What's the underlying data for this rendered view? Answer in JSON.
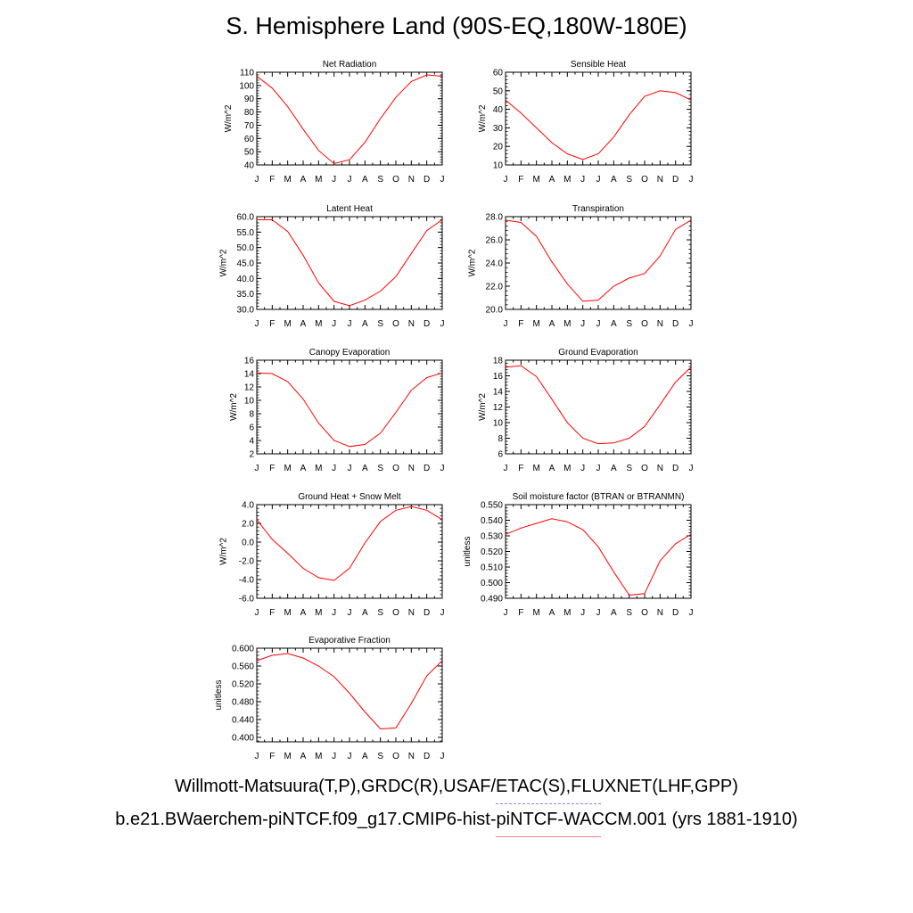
{
  "title": "S. Hemisphere Land (90S-EQ,180W-180E)",
  "footer": {
    "obs_sources": "Willmott-Matsuura(T,P),GRDC(R),USAF/ETAC(S),FLUXNET(LHF,GPP)",
    "model_case": "b.e21.BWaerchem-piNTCF.f09_g17.CMIP6-hist-piNTCF-WACCM.001 (yrs 1881-1910)"
  },
  "colors": {
    "series": "#ff0000",
    "obs_legend": "#8080ff",
    "model_legend": "#ff8080",
    "axes": "#000000"
  },
  "chart_data": [
    {
      "type": "line",
      "title": "Net Radiation",
      "ylabel": "W/m^2",
      "categories": [
        "J",
        "F",
        "M",
        "A",
        "M",
        "J",
        "J",
        "A",
        "S",
        "O",
        "N",
        "D",
        "J"
      ],
      "ylim": [
        40,
        110
      ],
      "yticks": [
        40,
        50,
        60,
        70,
        80,
        90,
        100,
        110
      ],
      "ytick_labels": [
        "40",
        "50",
        "60",
        "70",
        "80",
        "90",
        "100",
        "110"
      ],
      "values": [
        107,
        98,
        84,
        67,
        51,
        41,
        44,
        57,
        75,
        91,
        103,
        108,
        107
      ]
    },
    {
      "type": "line",
      "title": "Sensible Heat",
      "ylabel": "W/m^2",
      "categories": [
        "J",
        "F",
        "M",
        "A",
        "M",
        "J",
        "J",
        "A",
        "S",
        "O",
        "N",
        "D",
        "J"
      ],
      "ylim": [
        10,
        60
      ],
      "yticks": [
        10,
        20,
        30,
        40,
        50,
        60
      ],
      "ytick_labels": [
        "10",
        "20",
        "30",
        "40",
        "50",
        "60"
      ],
      "values": [
        45,
        38,
        30,
        22,
        16,
        13,
        16,
        25,
        37,
        47,
        50,
        49,
        45
      ]
    },
    {
      "type": "line",
      "title": "Latent Heat",
      "ylabel": "W/m^2",
      "categories": [
        "J",
        "F",
        "M",
        "A",
        "M",
        "J",
        "J",
        "A",
        "S",
        "O",
        "N",
        "D",
        "J"
      ],
      "ylim": [
        30,
        60
      ],
      "yticks": [
        30,
        35,
        40,
        45,
        50,
        55,
        60
      ],
      "ytick_labels": [
        "30.0",
        "35.0",
        "40.0",
        "45.0",
        "50.0",
        "55.0",
        "60.0"
      ],
      "values": [
        59,
        59,
        55.2,
        47.5,
        38.6,
        32.6,
        31.2,
        33,
        35.9,
        40.6,
        48.1,
        55.5,
        59
      ]
    },
    {
      "type": "line",
      "title": "Transpiration",
      "ylabel": "W/m^2",
      "categories": [
        "J",
        "F",
        "M",
        "A",
        "M",
        "J",
        "J",
        "A",
        "S",
        "O",
        "N",
        "D",
        "J"
      ],
      "ylim": [
        20,
        28
      ],
      "yticks": [
        20,
        22,
        24,
        26,
        28
      ],
      "ytick_labels": [
        "20.0",
        "22.0",
        "24.0",
        "26.0",
        "28.0"
      ],
      "values": [
        27.7,
        27.5,
        26.3,
        24.1,
        22.2,
        20.7,
        20.8,
        22,
        22.7,
        23.1,
        24.6,
        26.9,
        27.7
      ]
    },
    {
      "type": "line",
      "title": "Canopy Evaporation",
      "ylabel": "W/m^2",
      "categories": [
        "J",
        "F",
        "M",
        "A",
        "M",
        "J",
        "J",
        "A",
        "S",
        "O",
        "N",
        "D",
        "J"
      ],
      "ylim": [
        2,
        16
      ],
      "yticks": [
        2,
        4,
        6,
        8,
        10,
        12,
        14,
        16
      ],
      "ytick_labels": [
        "2",
        "4",
        "6",
        "8",
        "10",
        "12",
        "14",
        "16"
      ],
      "values": [
        14.1,
        14,
        12.8,
        10.2,
        6.6,
        4,
        3.1,
        3.4,
        5.1,
        8.2,
        11.5,
        13.4,
        14.1
      ]
    },
    {
      "type": "line",
      "title": "Ground Evaporation",
      "ylabel": "W/m^2",
      "categories": [
        "J",
        "F",
        "M",
        "A",
        "M",
        "J",
        "J",
        "A",
        "S",
        "O",
        "N",
        "D",
        "J"
      ],
      "ylim": [
        6,
        18
      ],
      "yticks": [
        6,
        8,
        10,
        12,
        14,
        16,
        18
      ],
      "ytick_labels": [
        "6",
        "8",
        "10",
        "12",
        "14",
        "16",
        "18"
      ],
      "values": [
        17.1,
        17.3,
        15.9,
        13,
        10,
        8,
        7.3,
        7.4,
        8,
        9.5,
        12.3,
        15.2,
        17.1
      ]
    },
    {
      "type": "line",
      "title": "Ground Heat + Snow Melt",
      "ylabel": "W/m^2",
      "categories": [
        "J",
        "F",
        "M",
        "A",
        "M",
        "J",
        "J",
        "A",
        "S",
        "O",
        "N",
        "D",
        "J"
      ],
      "ylim": [
        -6,
        4
      ],
      "yticks": [
        -6,
        -4,
        -2,
        0,
        2,
        4
      ],
      "ytick_labels": [
        "-6.0",
        "-4.0",
        "-2.0",
        "0.0",
        "2.0",
        "4.0"
      ],
      "values": [
        2.4,
        0.3,
        -1.2,
        -2.8,
        -3.8,
        -4.1,
        -2.8,
        -0.1,
        2.2,
        3.4,
        3.8,
        3.4,
        2.4
      ]
    },
    {
      "type": "line",
      "title": "Soil moisture factor (BTRAN or BTRANMN)",
      "ylabel": "unitless",
      "categories": [
        "J",
        "F",
        "M",
        "A",
        "M",
        "J",
        "J",
        "A",
        "S",
        "O",
        "N",
        "D",
        "J"
      ],
      "ylim": [
        0.49,
        0.55
      ],
      "yticks": [
        0.49,
        0.5,
        0.51,
        0.52,
        0.53,
        0.54,
        0.55
      ],
      "ytick_labels": [
        "0.490",
        "0.500",
        "0.510",
        "0.520",
        "0.530",
        "0.540",
        "0.550"
      ],
      "values": [
        0.531,
        0.535,
        0.538,
        0.541,
        0.539,
        0.534,
        0.523,
        0.507,
        0.492,
        0.493,
        0.514,
        0.525,
        0.531
      ]
    },
    {
      "type": "line",
      "title": "Evaporative Fraction",
      "ylabel": "unitless",
      "categories": [
        "J",
        "F",
        "M",
        "A",
        "M",
        "J",
        "J",
        "A",
        "S",
        "O",
        "N",
        "D",
        "J"
      ],
      "ylim": [
        0.39,
        0.6
      ],
      "yticks": [
        0.4,
        0.44,
        0.48,
        0.52,
        0.56,
        0.6
      ],
      "ytick_labels": [
        "0.400",
        "0.440",
        "0.480",
        "0.520",
        "0.560",
        "0.600"
      ],
      "values": [
        0.572,
        0.584,
        0.588,
        0.578,
        0.56,
        0.536,
        0.499,
        0.457,
        0.419,
        0.421,
        0.476,
        0.538,
        0.572
      ]
    }
  ]
}
